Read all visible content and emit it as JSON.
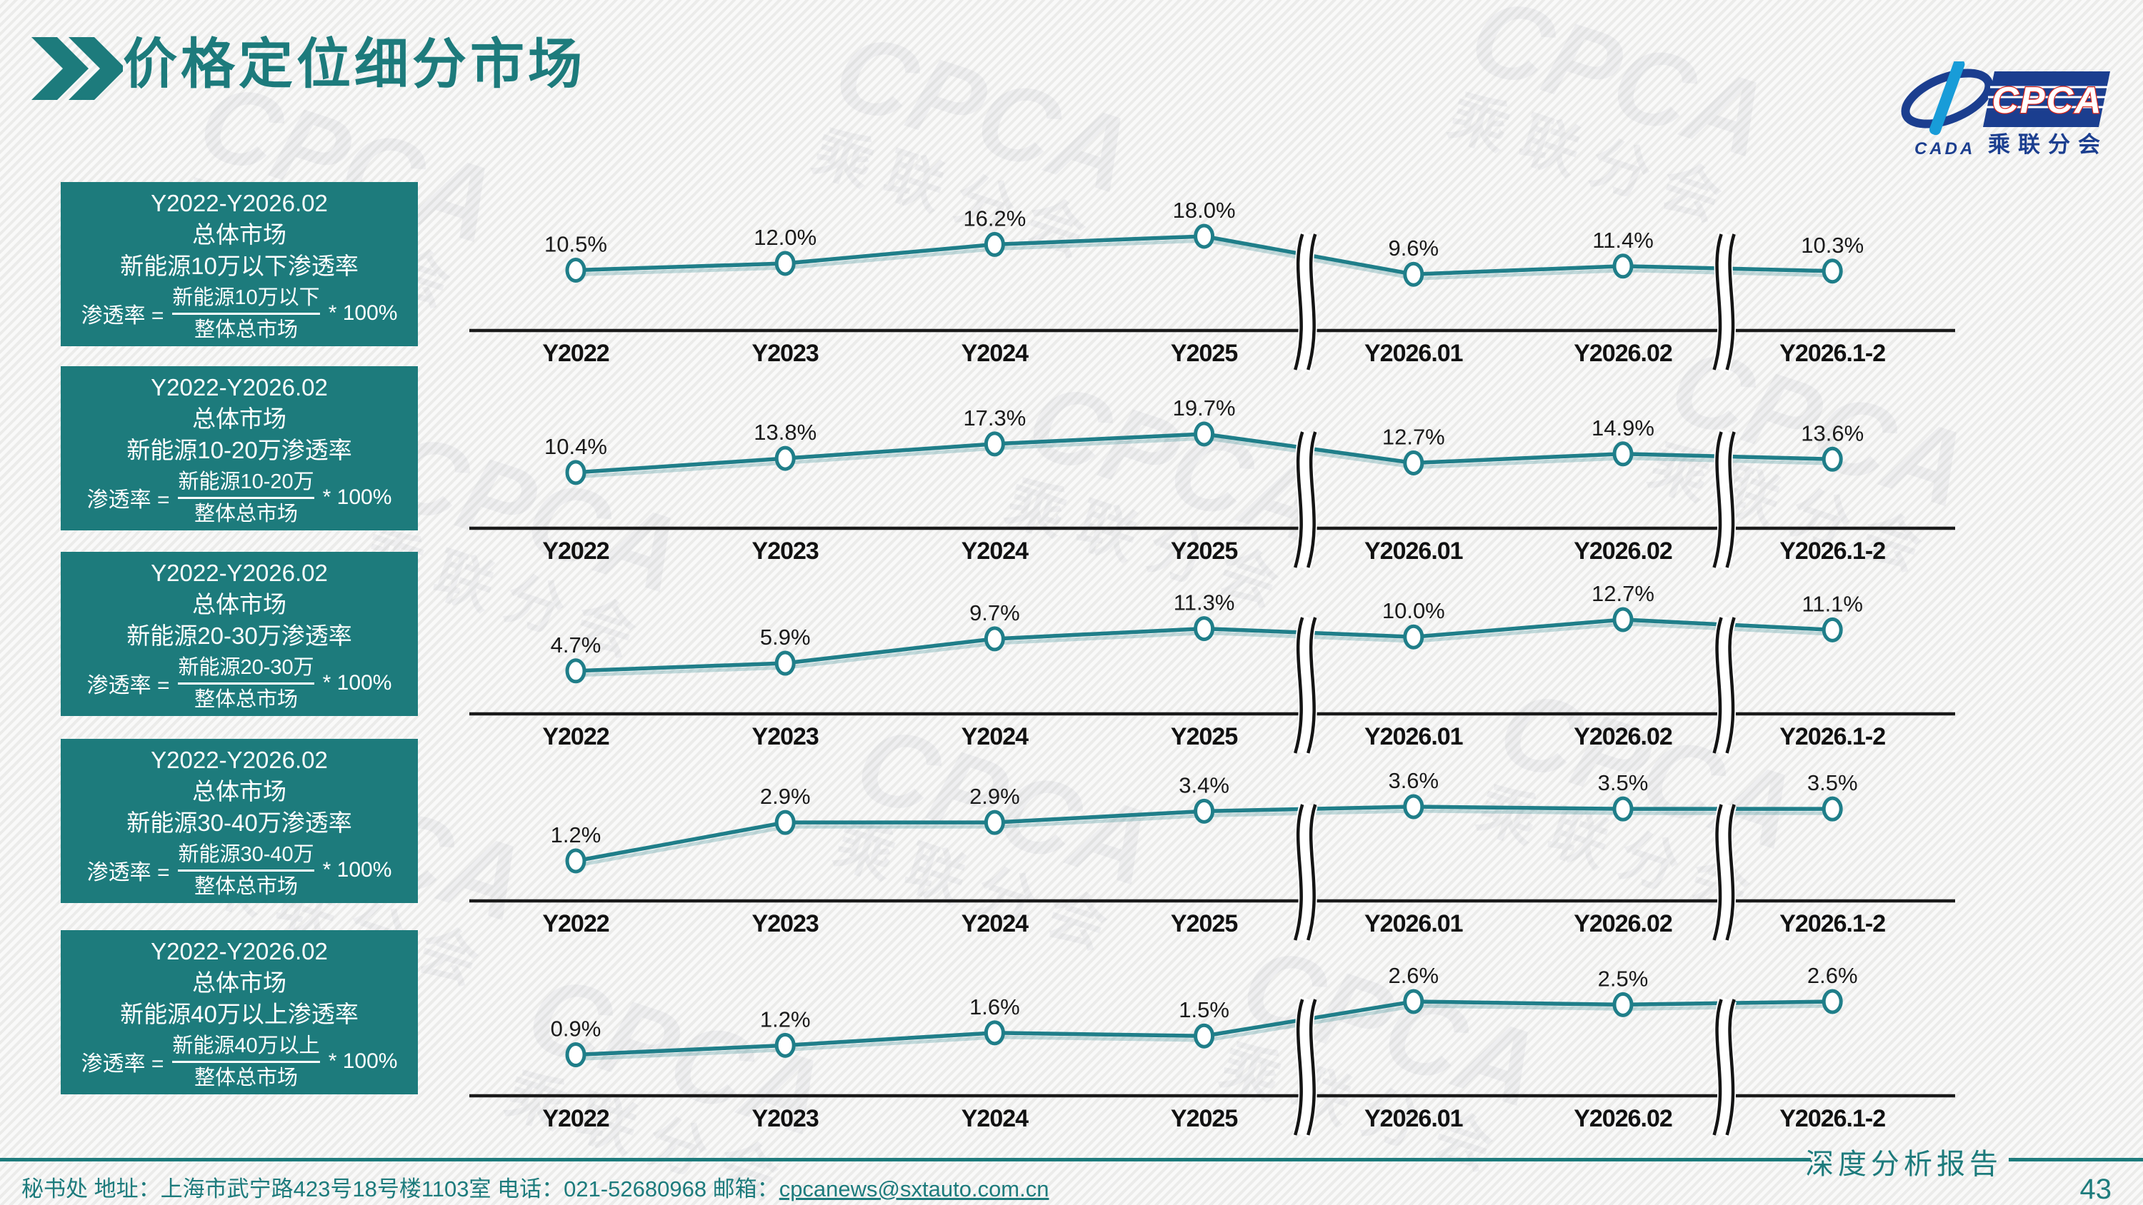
{
  "page": {
    "title": "价格定位细分市场",
    "page_number": "43",
    "report_label": "深度分析报告",
    "footer_text": "秘书处   地址：上海市武宁路423号18号楼1103室  电话：021-52680968   邮箱：",
    "footer_email": "cpcanews@sxtauto.com.cn"
  },
  "logo": {
    "cpca": "CPCA",
    "cada": "CADA",
    "subtitle": "乘联分会"
  },
  "watermark": {
    "line1": "CPCA",
    "line2": "乘联分会"
  },
  "colors": {
    "teal": "#1D7B7C",
    "line_teal": "#1F7E89",
    "axis_black": "#1A1A1A",
    "label_black": "#1A1A1A",
    "logo_dark_blue": "#1B3E8F",
    "logo_light_blue": "#189CD8",
    "logo_red": "#D9261C"
  },
  "chart_data": [
    {
      "type": "line",
      "box": {
        "period": "Y2022-Y2026.02",
        "market": "总体市场",
        "metric": "新能源10万以下渗透率",
        "formula_lhs": "渗透率 =",
        "formula_numerator": "新能源10万以下",
        "formula_denominator": "整体总市场",
        "formula_rhs": "* 100%"
      },
      "categories": [
        "Y2022",
        "Y2023",
        "Y2024",
        "Y2025",
        "Y2026.01",
        "Y2026.02",
        "Y2026.1-2"
      ],
      "values": [
        10.5,
        12.0,
        16.2,
        18.0,
        9.6,
        11.4,
        10.3
      ],
      "labels": [
        "10.5%",
        "12.0%",
        "16.2%",
        "18.0%",
        "9.6%",
        "11.4%",
        "10.3%"
      ],
      "y_axis_visible": false,
      "data_labels": true,
      "axis_breaks_after": [
        "Y2025",
        "Y2026.02"
      ]
    },
    {
      "type": "line",
      "box": {
        "period": "Y2022-Y2026.02",
        "market": "总体市场",
        "metric": "新能源10-20万渗透率",
        "formula_lhs": "渗透率 =",
        "formula_numerator": "新能源10-20万",
        "formula_denominator": "整体总市场",
        "formula_rhs": "* 100%"
      },
      "categories": [
        "Y2022",
        "Y2023",
        "Y2024",
        "Y2025",
        "Y2026.01",
        "Y2026.02",
        "Y2026.1-2"
      ],
      "values": [
        10.4,
        13.8,
        17.3,
        19.7,
        12.7,
        14.9,
        13.6
      ],
      "labels": [
        "10.4%",
        "13.8%",
        "17.3%",
        "19.7%",
        "12.7%",
        "14.9%",
        "13.6%"
      ],
      "y_axis_visible": false,
      "data_labels": true,
      "axis_breaks_after": [
        "Y2025",
        "Y2026.02"
      ]
    },
    {
      "type": "line",
      "box": {
        "period": "Y2022-Y2026.02",
        "market": "总体市场",
        "metric": "新能源20-30万渗透率",
        "formula_lhs": "渗透率 =",
        "formula_numerator": "新能源20-30万",
        "formula_denominator": "整体总市场",
        "formula_rhs": "* 100%"
      },
      "categories": [
        "Y2022",
        "Y2023",
        "Y2024",
        "Y2025",
        "Y2026.01",
        "Y2026.02",
        "Y2026.1-2"
      ],
      "values": [
        4.7,
        5.9,
        9.7,
        11.3,
        10.0,
        12.7,
        11.1
      ],
      "labels": [
        "4.7%",
        "5.9%",
        "9.7%",
        "11.3%",
        "10.0%",
        "12.7%",
        "11.1%"
      ],
      "y_axis_visible": false,
      "data_labels": true,
      "axis_breaks_after": [
        "Y2025",
        "Y2026.02"
      ]
    },
    {
      "type": "line",
      "box": {
        "period": "Y2022-Y2026.02",
        "market": "总体市场",
        "metric": "新能源30-40万渗透率",
        "formula_lhs": "渗透率 =",
        "formula_numerator": "新能源30-40万",
        "formula_denominator": "整体总市场",
        "formula_rhs": "* 100%"
      },
      "categories": [
        "Y2022",
        "Y2023",
        "Y2024",
        "Y2025",
        "Y2026.01",
        "Y2026.02",
        "Y2026.1-2"
      ],
      "values": [
        1.2,
        2.9,
        2.9,
        3.4,
        3.6,
        3.5,
        3.5
      ],
      "labels": [
        "1.2%",
        "2.9%",
        "2.9%",
        "3.4%",
        "3.6%",
        "3.5%",
        "3.5%"
      ],
      "y_axis_visible": false,
      "data_labels": true,
      "axis_breaks_after": [
        "Y2025",
        "Y2026.02"
      ]
    },
    {
      "type": "line",
      "box": {
        "period": "Y2022-Y2026.02",
        "market": "总体市场",
        "metric": "新能源40万以上渗透率",
        "formula_lhs": "渗透率 =",
        "formula_numerator": "新能源40万以上",
        "formula_denominator": "整体总市场",
        "formula_rhs": "* 100%"
      },
      "categories": [
        "Y2022",
        "Y2023",
        "Y2024",
        "Y2025",
        "Y2026.01",
        "Y2026.02",
        "Y2026.1-2"
      ],
      "values": [
        0.9,
        1.2,
        1.6,
        1.5,
        2.6,
        2.5,
        2.6
      ],
      "labels": [
        "0.9%",
        "1.2%",
        "1.6%",
        "1.5%",
        "2.6%",
        "2.5%",
        "2.6%"
      ],
      "y_axis_visible": false,
      "data_labels": true,
      "axis_breaks_after": [
        "Y2025",
        "Y2026.02"
      ]
    }
  ]
}
